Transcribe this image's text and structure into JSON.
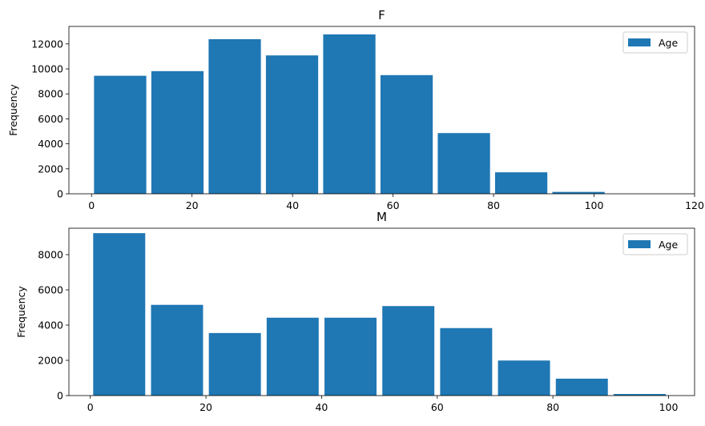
{
  "chart_data": [
    {
      "type": "bar",
      "title": "F",
      "ylabel": "Frequency",
      "xlabel": "",
      "xlim": [
        -4.5,
        120
      ],
      "ylim": [
        0,
        13400
      ],
      "xticks": [
        0,
        20,
        40,
        60,
        80,
        100,
        120
      ],
      "yticks": [
        0,
        2000,
        4000,
        6000,
        8000,
        10000,
        12000
      ],
      "legend": {
        "position": "top-right",
        "entries": [
          "Age"
        ]
      },
      "series": [
        {
          "name": "Age",
          "color": "#1f77b4",
          "bins": [
            {
              "x0": 0.5,
              "x1": 10.9,
              "value": 9450
            },
            {
              "x0": 11.9,
              "x1": 22.3,
              "value": 9820
            },
            {
              "x0": 23.3,
              "x1": 33.7,
              "value": 12380
            },
            {
              "x0": 34.7,
              "x1": 45.1,
              "value": 11080
            },
            {
              "x0": 46.1,
              "x1": 56.5,
              "value": 12760
            },
            {
              "x0": 57.5,
              "x1": 67.9,
              "value": 9500
            },
            {
              "x0": 68.9,
              "x1": 79.3,
              "value": 4860
            },
            {
              "x0": 80.3,
              "x1": 90.7,
              "value": 1720
            },
            {
              "x0": 91.7,
              "x1": 102.1,
              "value": 150
            }
          ]
        }
      ]
    },
    {
      "type": "bar",
      "title": "M",
      "ylabel": "Frequency",
      "xlabel": "",
      "xlim": [
        -3.7,
        104.5
      ],
      "ylim": [
        0,
        9500
      ],
      "xticks": [
        0,
        20,
        40,
        60,
        80,
        100
      ],
      "yticks": [
        0,
        2000,
        4000,
        6000,
        8000
      ],
      "legend": {
        "position": "top-right",
        "entries": [
          "Age"
        ]
      },
      "series": [
        {
          "name": "Age",
          "color": "#1f77b4",
          "bins": [
            {
              "x0": 0.5,
              "x1": 9.5,
              "value": 9220
            },
            {
              "x0": 10.5,
              "x1": 19.5,
              "value": 5150
            },
            {
              "x0": 20.5,
              "x1": 29.5,
              "value": 3550
            },
            {
              "x0": 30.5,
              "x1": 39.5,
              "value": 4420
            },
            {
              "x0": 40.5,
              "x1": 49.5,
              "value": 4420
            },
            {
              "x0": 50.5,
              "x1": 59.5,
              "value": 5080
            },
            {
              "x0": 60.5,
              "x1": 69.5,
              "value": 3830
            },
            {
              "x0": 70.5,
              "x1": 79.5,
              "value": 1990
            },
            {
              "x0": 80.5,
              "x1": 89.5,
              "value": 960
            },
            {
              "x0": 90.5,
              "x1": 99.5,
              "value": 90
            }
          ]
        }
      ]
    }
  ]
}
